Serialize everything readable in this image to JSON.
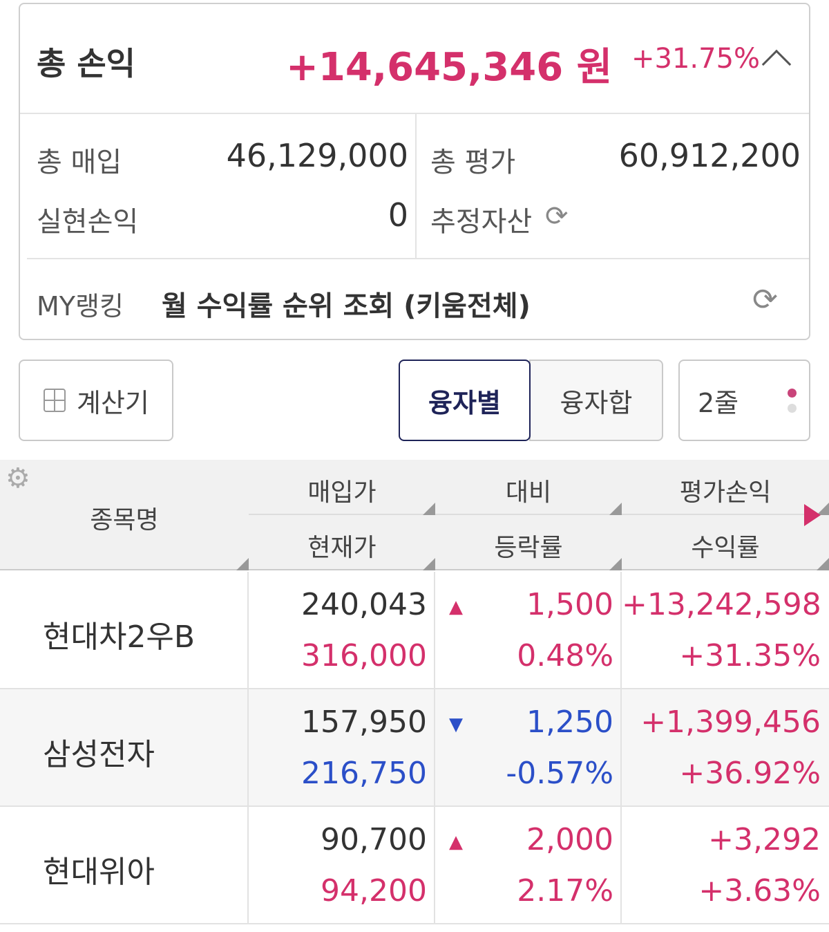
{
  "summary": {
    "total_pl_label": "총 손익",
    "total_pl_value": "+14,645,346 원",
    "total_pl_rate": "+31.75%",
    "buy_label": "총 매입",
    "buy_value": "46,129,000",
    "eval_label": "총 평가",
    "eval_value": "60,912,200",
    "realized_label": "실현손익",
    "realized_value": "0",
    "est_asset_label": "추정자산",
    "ranking_label": "MY랭킹",
    "ranking_text": "월 수익률 순위 조회 (키움전체)"
  },
  "toolbar": {
    "calculator": "계산기",
    "by_loan": "융자별",
    "loan_sum": "융자합",
    "lines": "2줄"
  },
  "table": {
    "headers": {
      "name": "종목명",
      "buy_price": "매입가",
      "cur_price": "현재가",
      "change": "대비",
      "change_rate": "등락률",
      "eval_pl": "평가손익",
      "return_rate": "수익률"
    },
    "rows": [
      {
        "name": "현대차2우B",
        "buy_price": "240,043",
        "cur_price": "316,000",
        "direction": "up",
        "change": "1,500",
        "change_rate": "0.48%",
        "eval_pl": "+13,242,598",
        "return_rate": "+31.35%"
      },
      {
        "name": "삼성전자",
        "buy_price": "157,950",
        "cur_price": "216,750",
        "direction": "down",
        "change": "1,250",
        "change_rate": "-0.57%",
        "eval_pl": "+1,399,456",
        "return_rate": "+36.92%"
      },
      {
        "name": "현대위아",
        "buy_price": "90,700",
        "cur_price": "94,200",
        "direction": "up",
        "change": "2,000",
        "change_rate": "2.17%",
        "eval_pl": "+3,292",
        "return_rate": "+3.63%"
      }
    ]
  },
  "colors": {
    "up": "#d4306b",
    "down": "#2b4fc8",
    "selected": "#1e2358"
  }
}
